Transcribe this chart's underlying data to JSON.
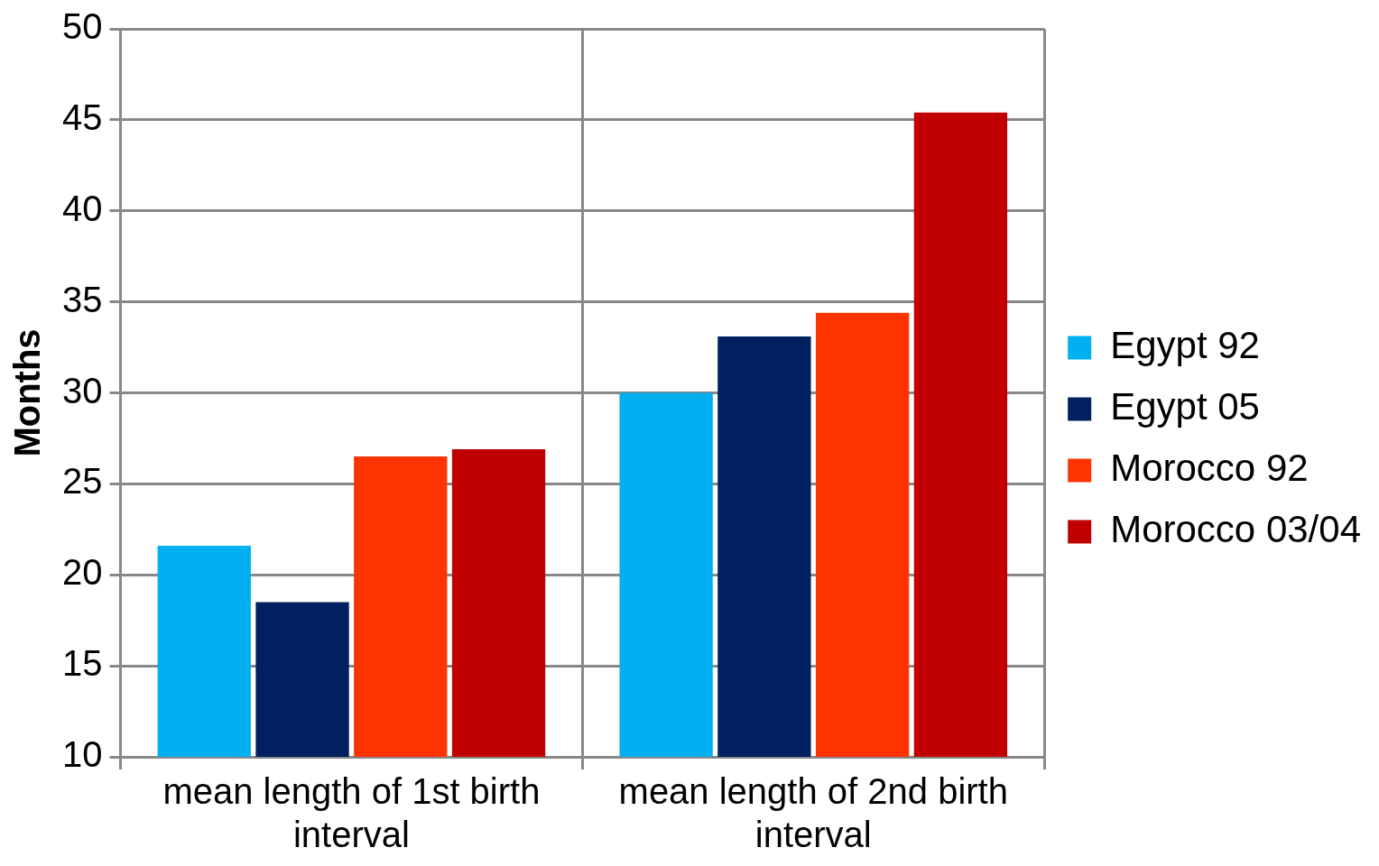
{
  "chart_data": {
    "type": "bar",
    "ylabel": "Months",
    "categories": [
      "mean length of 1st birth interval",
      "mean length of 2nd birth interval"
    ],
    "series": [
      {
        "name": "Egypt 92",
        "color": "#00b0f0",
        "values": [
          21.6,
          30.0
        ]
      },
      {
        "name": "Egypt 05",
        "color": "#002060",
        "values": [
          18.5,
          33.1
        ]
      },
      {
        "name": "Morocco 92",
        "color": "#ff3300",
        "values": [
          26.5,
          34.4
        ]
      },
      {
        "name": "Morocco 03/04",
        "color": "#c00000",
        "values": [
          26.9,
          45.4
        ]
      }
    ],
    "ylim": [
      10,
      50
    ],
    "yticks": [
      10,
      15,
      20,
      25,
      30,
      35,
      40,
      45,
      50
    ],
    "grid": true,
    "legend": "right"
  }
}
